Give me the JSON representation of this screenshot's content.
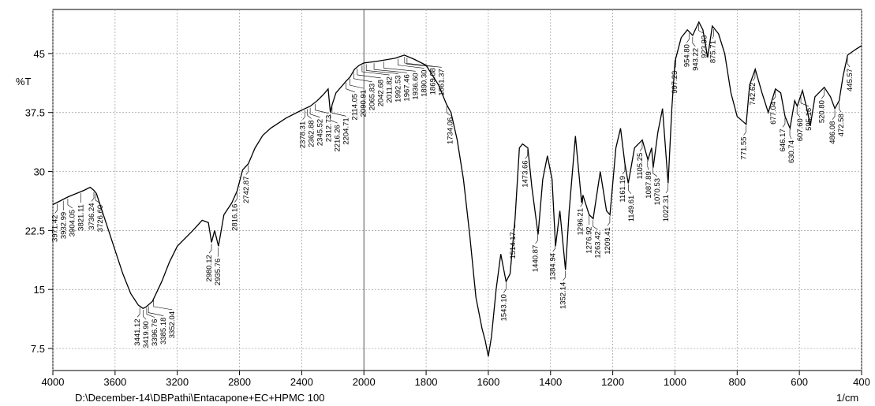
{
  "chart_data": {
    "type": "line",
    "y_label": "%T",
    "x_label": "1/cm",
    "footer": "D:\\December-14\\DBPathi\\Entacapone+EC+HPMC 100",
    "color": "#000000",
    "grid": true,
    "xlim": [
      4000,
      400
    ],
    "ylim": [
      4.7,
      50.6
    ],
    "x_scale_break": {
      "at": 2000,
      "factor": 2
    },
    "xticks": [
      4000,
      3600,
      3200,
      2800,
      2400,
      2000,
      1800,
      1600,
      1400,
      1200,
      1000,
      800,
      600,
      400
    ],
    "yticks": [
      7.5,
      15,
      22.5,
      30,
      37.5,
      45
    ],
    "x": [
      4000,
      3950,
      3900,
      3850,
      3800,
      3760,
      3736,
      3720,
      3700,
      3650,
      3600,
      3550,
      3500,
      3450,
      3420,
      3400,
      3360,
      3300,
      3250,
      3200,
      3100,
      3040,
      3000,
      2980,
      2960,
      2935,
      2900,
      2850,
      2816,
      2780,
      2743,
      2700,
      2650,
      2600,
      2500,
      2400,
      2345,
      2300,
      2260,
      2230,
      2216,
      2204,
      2180,
      2114,
      2090,
      2060,
      2030,
      2000,
      1960,
      1900,
      1870,
      1840,
      1800,
      1760,
      1734,
      1720,
      1700,
      1680,
      1660,
      1640,
      1620,
      1610,
      1600,
      1590,
      1575,
      1560,
      1543,
      1530,
      1514,
      1500,
      1490,
      1473,
      1460,
      1440,
      1425,
      1410,
      1395,
      1384,
      1370,
      1352,
      1340,
      1320,
      1300,
      1296,
      1276,
      1263,
      1240,
      1220,
      1209,
      1190,
      1175,
      1161,
      1150,
      1130,
      1105,
      1087,
      1075,
      1070,
      1055,
      1040,
      1022,
      1010,
      1000,
      980,
      960,
      943,
      923,
      910,
      895,
      880,
      860,
      840,
      820,
      800,
      771,
      760,
      742,
      720,
      700,
      677,
      660,
      646,
      630,
      615,
      607,
      590,
      576,
      565,
      550,
      520,
      500,
      486,
      472,
      460,
      445,
      420,
      400
    ],
    "values": [
      25.8,
      26.3,
      26.8,
      27.2,
      27.6,
      28.0,
      27.6,
      27.2,
      26,
      23,
      20,
      17,
      14.5,
      13,
      12.6,
      12.8,
      13.5,
      16,
      18.5,
      20.5,
      22.5,
      23.8,
      23.5,
      21,
      22.5,
      20.5,
      24.5,
      26,
      27.5,
      30.2,
      31,
      33,
      34.6,
      35.5,
      36.8,
      37.8,
      38.3,
      39,
      39.8,
      40.5,
      37.5,
      38.5,
      40,
      41.5,
      42,
      43,
      43.5,
      43.8,
      44,
      44.4,
      44.8,
      44.3,
      43.5,
      41,
      38.5,
      37.5,
      34,
      29,
      22,
      14,
      10,
      8.5,
      6.5,
      9,
      15,
      19.5,
      16,
      17,
      24,
      33,
      33.5,
      33,
      28,
      22,
      29,
      32,
      29,
      20.5,
      25,
      17.5,
      25,
      34.5,
      26,
      27,
      24.5,
      24,
      30,
      25,
      24.5,
      33,
      35.5,
      31,
      28.5,
      33,
      34,
      31.5,
      33,
      30.5,
      35,
      38,
      28.5,
      38,
      44,
      47,
      48,
      47.3,
      49,
      48,
      44.5,
      48.5,
      47.5,
      45,
      40,
      37,
      36,
      41,
      43,
      40,
      37.5,
      40.5,
      40,
      37,
      35.5,
      39,
      38.3,
      40.3,
      38,
      35.8,
      39.5,
      40.7,
      39.5,
      38,
      39,
      42,
      44.8,
      45.5,
      46
    ],
    "peaks": [
      {
        "value": 3971.42,
        "label": "3971.42"
      },
      {
        "value": 3932.99,
        "label": "3932.99"
      },
      {
        "value": 3904.05,
        "label": "3904.05"
      },
      {
        "value": 3821.11,
        "label": "3821.11"
      },
      {
        "value": 3736.24,
        "label": "3736.24"
      },
      {
        "value": 3726.6,
        "label": "3726.60"
      },
      {
        "value": 3441.12,
        "label": "3441.12"
      },
      {
        "value": 3419.9,
        "label": "3419.90"
      },
      {
        "value": 3396.76,
        "label": "3396.76"
      },
      {
        "value": 3385.18,
        "label": "3385.18"
      },
      {
        "value": 3352.04,
        "label": "3352.04"
      },
      {
        "value": 2980.12,
        "label": "2980.12"
      },
      {
        "value": 2935.76,
        "label": "2935.76"
      },
      {
        "value": 2816.16,
        "label": "2816.16"
      },
      {
        "value": 2742.87,
        "label": "2742.87"
      },
      {
        "value": 2378.31,
        "label": "2378.31"
      },
      {
        "value": 2362.88,
        "label": "2362.88"
      },
      {
        "value": 2345.52,
        "label": "2345.52"
      },
      {
        "value": 2312.73,
        "label": "2312.73"
      },
      {
        "value": 2216.26,
        "label": "2216.26"
      },
      {
        "value": 2204.71,
        "label": "2204.71"
      },
      {
        "value": 2114.05,
        "label": "2114.05"
      },
      {
        "value": 2090.91,
        "label": "2090.91"
      },
      {
        "value": 2065.83,
        "label": "2065.83"
      },
      {
        "value": 2042.68,
        "label": "2042.68"
      },
      {
        "value": 2011.82,
        "label": "2011.82"
      },
      {
        "value": 1992.53,
        "label": "1992.53"
      },
      {
        "value": 1967.46,
        "label": "1967.46"
      },
      {
        "value": 1936.6,
        "label": "1936.60"
      },
      {
        "value": 1890.3,
        "label": "1890.30"
      },
      {
        "value": 1869.08,
        "label": "1869.08"
      },
      {
        "value": 1861.37,
        "label": "1861.37"
      },
      {
        "value": 1734.06,
        "label": "1734.06"
      },
      {
        "value": 1543.1,
        "label": "1543.10"
      },
      {
        "value": 1514.17,
        "label": "1514.17"
      },
      {
        "value": 1473.66,
        "label": "1473.66"
      },
      {
        "value": 1440.87,
        "label": "1440.87"
      },
      {
        "value": 1384.94,
        "label": "1384.94"
      },
      {
        "value": 1352.14,
        "label": "1352.14"
      },
      {
        "value": 1296.21,
        "label": "1296.21"
      },
      {
        "value": 1276.92,
        "label": "1276.92"
      },
      {
        "value": 1263.42,
        "label": "1263.42"
      },
      {
        "value": 1209.41,
        "label": "1209.41"
      },
      {
        "value": 1161.19,
        "label": "1161.19"
      },
      {
        "value": 1149.61,
        "label": "1149.61"
      },
      {
        "value": 1105.25,
        "label": "1105.25"
      },
      {
        "value": 1087.89,
        "label": "1087.89"
      },
      {
        "value": 1070.53,
        "label": "1070.53"
      },
      {
        "value": 1022.31,
        "label": "1022.31"
      },
      {
        "value": 997.23,
        "label": "997.23"
      },
      {
        "value": 954.8,
        "label": "954.80"
      },
      {
        "value": 943.22,
        "label": "943.22"
      },
      {
        "value": 923.93,
        "label": "923.93"
      },
      {
        "value": 875.71,
        "label": "875.71"
      },
      {
        "value": 771.55,
        "label": "771.55"
      },
      {
        "value": 742.62,
        "label": "742.62"
      },
      {
        "value": 677.04,
        "label": "677.04"
      },
      {
        "value": 646.17,
        "label": "646.17"
      },
      {
        "value": 630.74,
        "label": "630.74"
      },
      {
        "value": 607.6,
        "label": "607.60"
      },
      {
        "value": 595.16,
        "label": "595.16"
      },
      {
        "value": 520.8,
        "label": "520.80"
      },
      {
        "value": 486.08,
        "label": "486.08"
      },
      {
        "value": 472.58,
        "label": "472.58"
      },
      {
        "value": 445.57,
        "label": "445.57"
      }
    ]
  }
}
